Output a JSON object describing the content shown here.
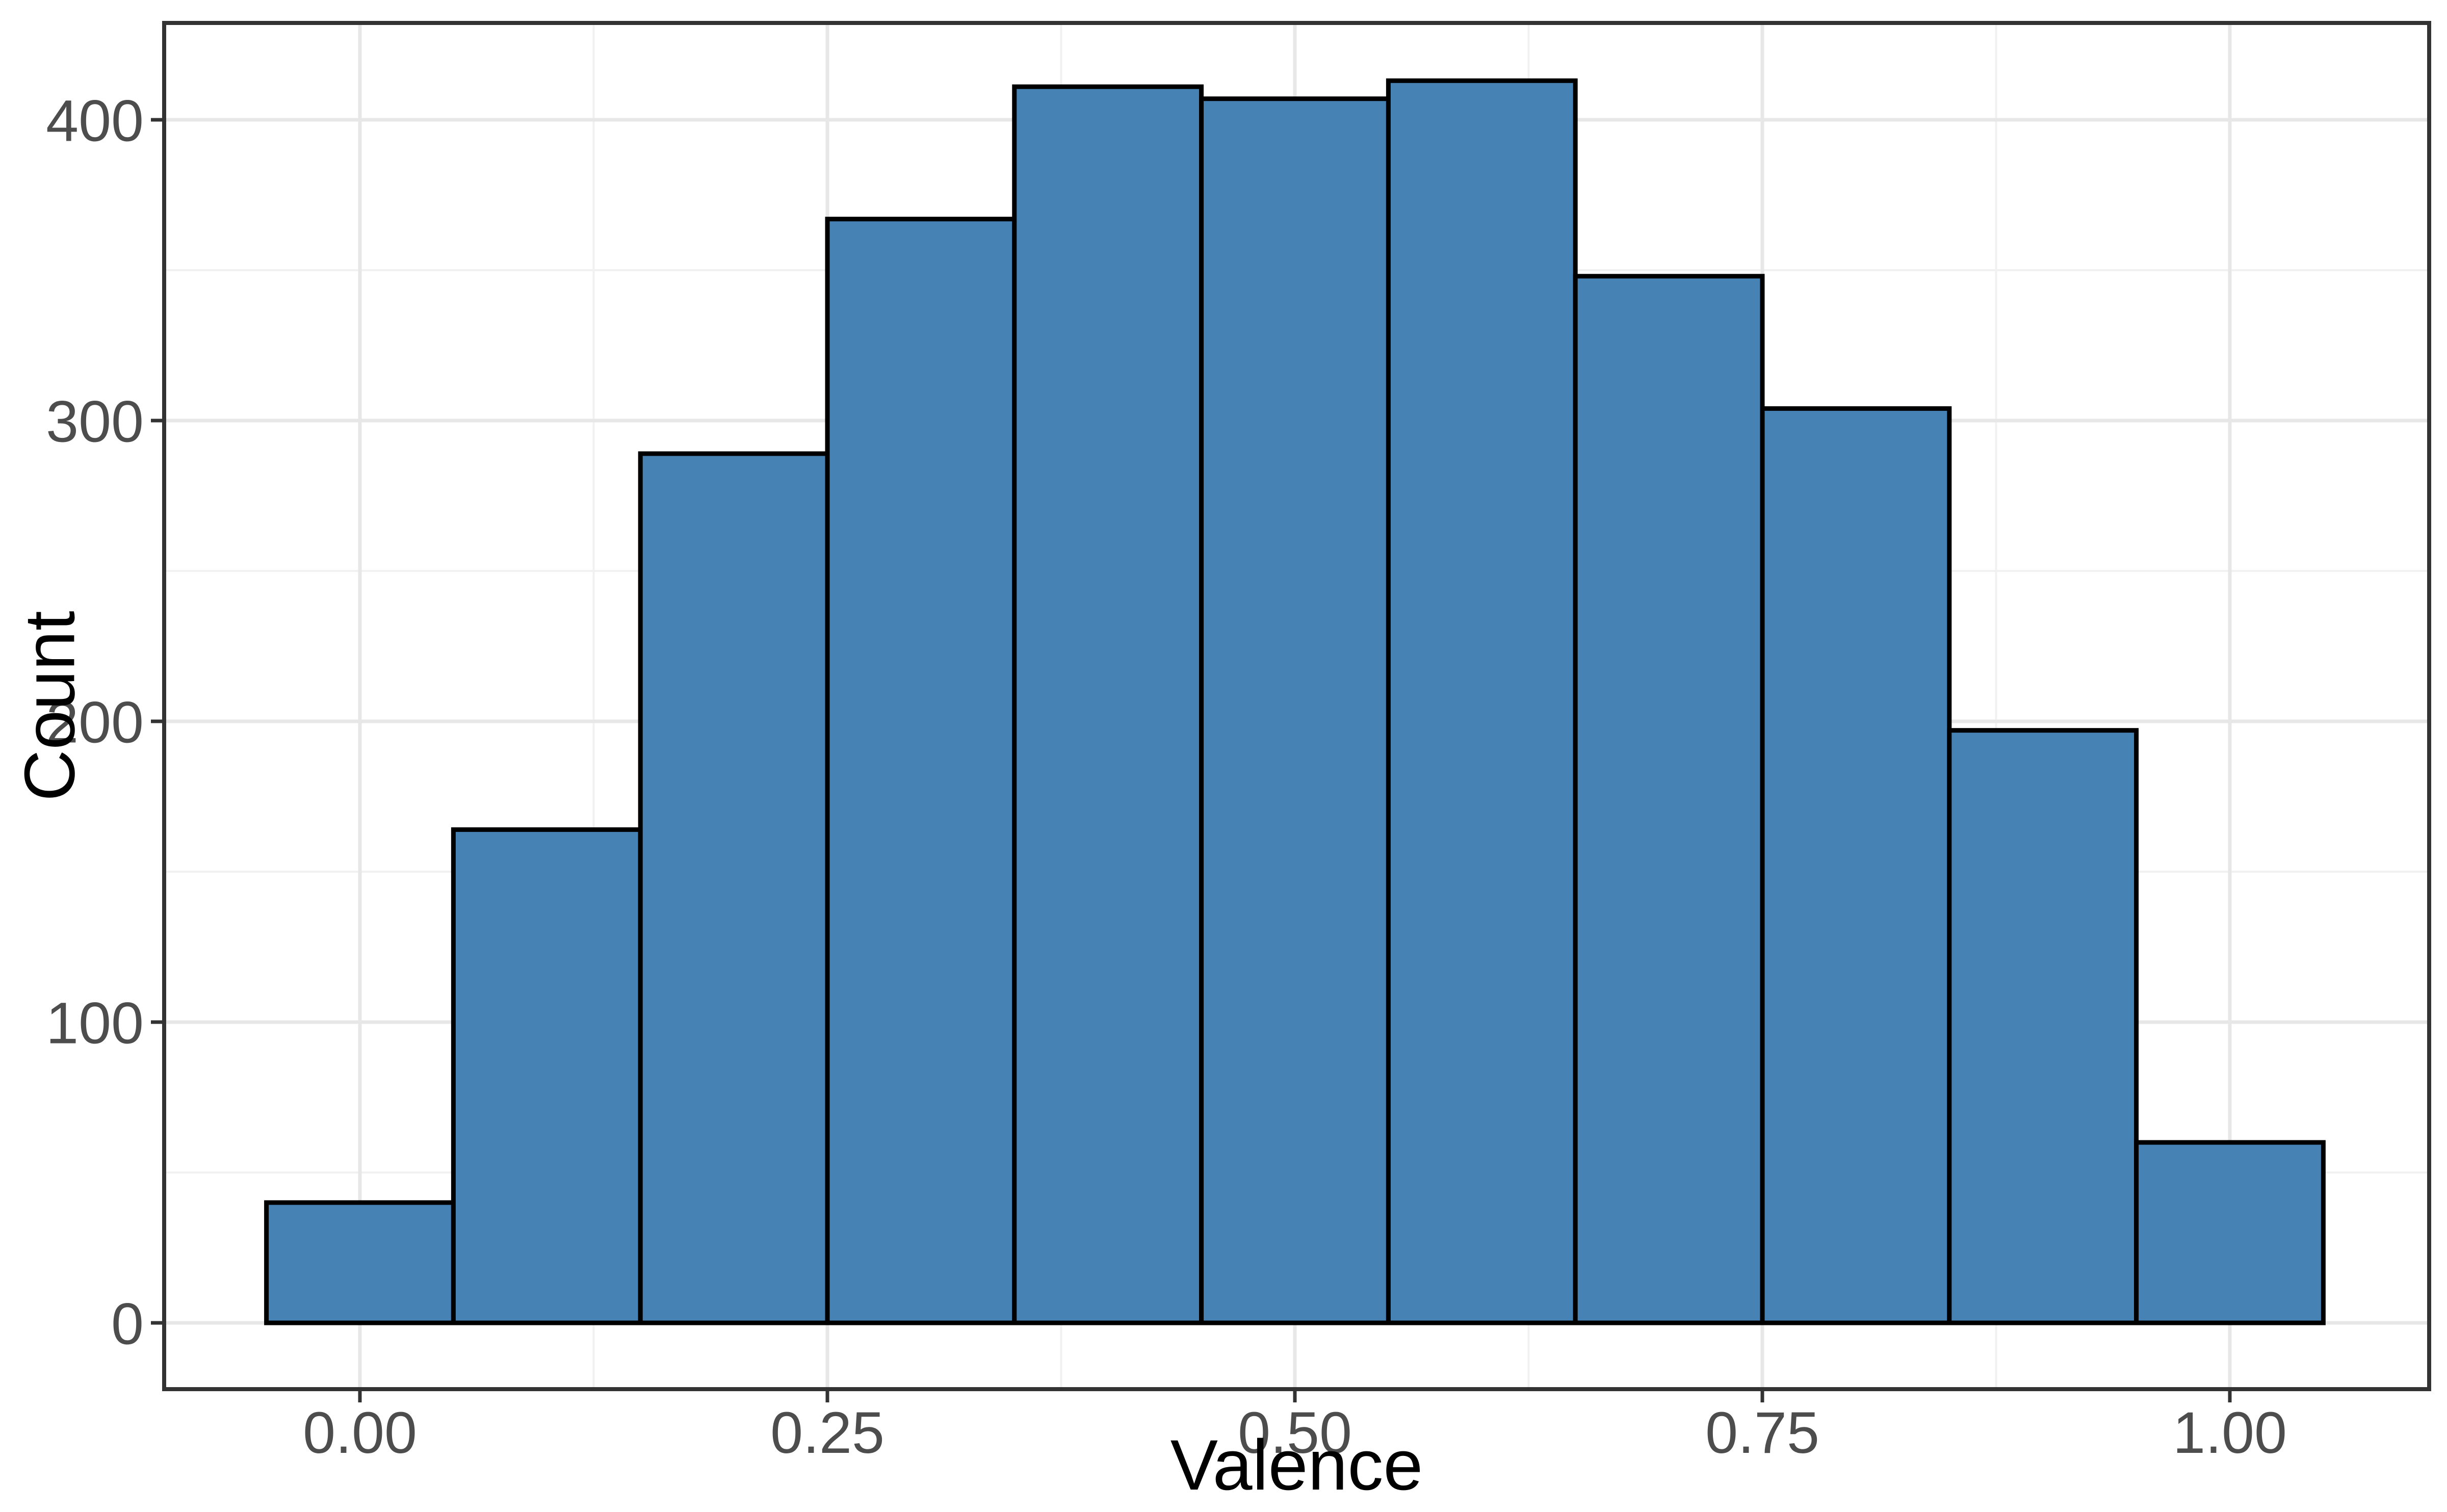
{
  "chart_data": {
    "type": "bar",
    "subtype": "histogram",
    "title": "",
    "xlabel": "Valence",
    "ylabel": "Count",
    "bin_width": 0.1,
    "bin_centers": [
      0.0,
      0.1,
      0.2,
      0.3,
      0.4,
      0.5,
      0.6,
      0.7,
      0.8,
      0.9,
      1.0
    ],
    "values": [
      40,
      164,
      289,
      367,
      411,
      407,
      413,
      348,
      304,
      197,
      60
    ],
    "total_count": 3000,
    "xlim": [
      -0.105,
      1.105
    ],
    "ylim": [
      -21,
      434
    ],
    "x_ticks": {
      "values": [
        0.0,
        0.25,
        0.5,
        0.75,
        1.0
      ],
      "labels": [
        "0.00",
        "0.25",
        "0.50",
        "0.75",
        "1.00"
      ]
    },
    "y_ticks": {
      "values": [
        0,
        100,
        200,
        300,
        400
      ],
      "labels": [
        "0",
        "100",
        "200",
        "300",
        "400"
      ]
    },
    "x_minor": [
      0.125,
      0.375,
      0.625,
      0.875
    ],
    "y_minor": [
      50,
      150,
      250,
      350
    ],
    "grid": "on",
    "legend": "none",
    "colors": {
      "bar_fill": "#4682B4",
      "bar_stroke": "#000000",
      "grid_major": "#E7E7E7",
      "grid_minor": "#F1F1F1",
      "panel_border": "#333333",
      "tick_mark": "#333333",
      "tick_label": "#4D4D4D",
      "axis_title": "#000000",
      "background": "#FFFFFF"
    }
  }
}
